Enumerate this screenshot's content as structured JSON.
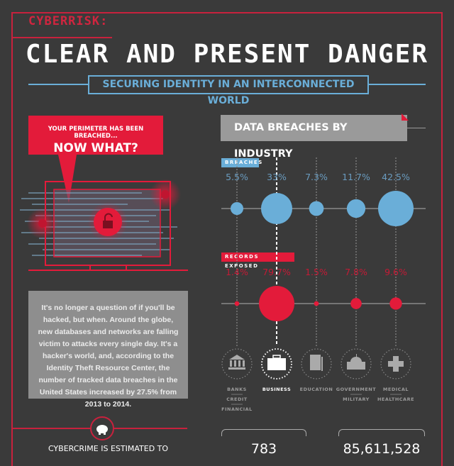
{
  "header": {
    "kicker": "CYBERRISK:",
    "title": "CLEAR AND PRESENT DANGER",
    "subtitle": "SECURING IDENTITY IN AN INTERCONNECTED WORLD"
  },
  "callout": {
    "line1": "YOUR PERIMETER HAS BEEN BREACHED...",
    "line2": "NOW WHAT?"
  },
  "intro_text": "It's no longer a question of if you'll be hacked, but when. Around the globe, new databases and networks are falling victim to attacks every single day. It's a hacker's world, and, according to the Identity Theft Resource Center, the number of tracked data breaches in the United States increased by 27.5% from 2013 to 2014.",
  "cybercrime_text": "CYBERCRIME IS ESTIMATED TO",
  "colors": {
    "red": "#e31b3a",
    "blue": "#6aaed8",
    "background": "#3a3a3a"
  },
  "chart_data": {
    "type": "bubble",
    "title": "DATA BREACHES BY INDUSTRY",
    "categories": [
      "BANKS / CREDIT / FINANCIAL",
      "BUSINESS",
      "EDUCATION",
      "GOVERNMENT / MILITARY",
      "MEDICAL / HEALTHCARE"
    ],
    "category_lines": [
      [
        "BANKS",
        "CREDIT",
        "FINANCIAL"
      ],
      [
        "BUSINESS"
      ],
      [
        "EDUCATION"
      ],
      [
        "GOVERNMENT",
        "MILITARY"
      ],
      [
        "MEDICAL",
        "HEALTHCARE"
      ]
    ],
    "icons": [
      "bank-icon",
      "briefcase-icon",
      "book-icon",
      "capitol-icon",
      "medical-cross-icon"
    ],
    "highlighted": "BUSINESS",
    "series": [
      {
        "name": "BREACHES",
        "values": [
          5.5,
          33,
          7.3,
          11.7,
          42.5
        ],
        "labels": [
          "5.5%",
          "33%",
          "7.3%",
          "11.7%",
          "42.5%"
        ],
        "color": "#6aaed8"
      },
      {
        "name": "RECORDS EXPOSED",
        "values": [
          1.4,
          79.7,
          1.5,
          7.8,
          9.6
        ],
        "labels": [
          "1.4%",
          "79.7%",
          "1.5%",
          "7.8%",
          "9.6%"
        ],
        "color": "#e31b3a"
      }
    ]
  },
  "totals": {
    "breaches": "783",
    "records": "85,611,528"
  }
}
